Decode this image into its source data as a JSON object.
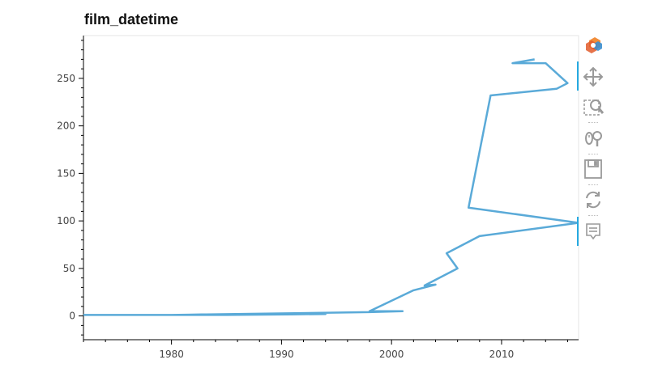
{
  "chart_data": {
    "type": "line",
    "title": "film_datetime",
    "xlabel": "",
    "ylabel": "",
    "xlim": [
      1972,
      2017
    ],
    "ylim": [
      -25,
      295
    ],
    "x_ticks": [
      1980,
      1990,
      2000,
      2010
    ],
    "y_ticks": [
      0,
      50,
      100,
      150,
      200,
      250
    ],
    "grid": false,
    "series": [
      {
        "name": "film_datetime",
        "color": "#5aaad8",
        "x": [
          1972,
          1985,
          1994,
          1980,
          1998,
          2001,
          1998,
          2002,
          2004,
          2003,
          2006,
          2005,
          2008,
          2017,
          2007,
          2009,
          2015,
          2016,
          2014,
          2011,
          2013
        ],
        "y": [
          1,
          1,
          2,
          1,
          4,
          5,
          5,
          27,
          33,
          32,
          50,
          66,
          84,
          98,
          114,
          232,
          239,
          245,
          266,
          266,
          270
        ]
      }
    ]
  },
  "toolbar": {
    "logo_icon": "bokeh-logo-icon",
    "tools": [
      {
        "icon": "pan-icon",
        "active": true
      },
      {
        "icon": "box-zoom-icon",
        "active": false
      },
      {
        "icon": "wheel-zoom-icon",
        "active": false
      },
      {
        "icon": "save-icon",
        "active": false
      },
      {
        "icon": "reset-icon",
        "active": false
      },
      {
        "icon": "hover-icon",
        "active": true
      }
    ]
  }
}
